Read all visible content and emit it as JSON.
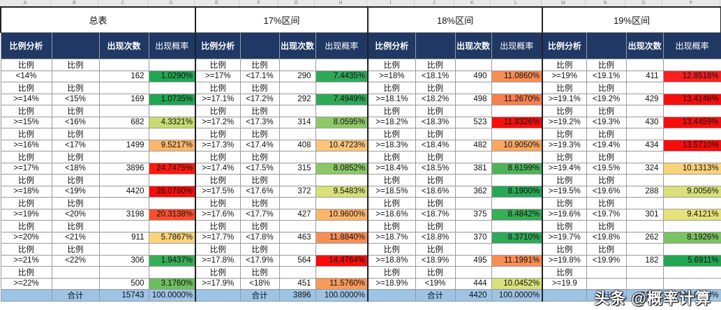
{
  "col_headers": [
    "A",
    "B",
    "C",
    "D",
    "E",
    "F",
    "G",
    "H",
    "I",
    "J",
    "K",
    "L",
    "M",
    "N",
    "O",
    "P"
  ],
  "titles": [
    "总表",
    "17%区间",
    "18%区间",
    "19%区间"
  ],
  "header_row": [
    "比例分析",
    "",
    "出现次数",
    "出现概率"
  ],
  "label_text": "比例",
  "colors": {
    "header_bg": "#1f3864",
    "total_bg": "#9dc3e6"
  },
  "sections": [
    {
      "rows": [
        {
          "lo": "<14%",
          "hi": "",
          "count": "162",
          "pct": "1.0290%",
          "color": "#22a652"
        },
        {
          "lo": ">=14%",
          "hi": "<15%",
          "count": "169",
          "pct": "1.0735%",
          "color": "#22a652"
        },
        {
          "lo": ">=15%",
          "hi": "<16%",
          "count": "682",
          "pct": "4.3321%",
          "color": "#c8dc70"
        },
        {
          "lo": ">=16%",
          "hi": "<17%",
          "count": "1499",
          "pct": "9.5217%",
          "color": "#fbb66b"
        },
        {
          "lo": ">=17%",
          "hi": "<18%",
          "count": "3896",
          "pct": "24.7475%",
          "color": "#ff1a10"
        },
        {
          "lo": ">=18%",
          "hi": "<19%",
          "count": "4420",
          "pct": "28.0760%",
          "color": "#f80d0d"
        },
        {
          "lo": ">=19%",
          "hi": "<20%",
          "count": "3198",
          "pct": "20.3138%",
          "color": "#fb4e2e"
        },
        {
          "lo": ">=20%",
          "hi": "<21%",
          "count": "911",
          "pct": "5.7867%",
          "color": "#fbd37a"
        },
        {
          "lo": ">=21%",
          "hi": "<22%",
          "count": "306",
          "pct": "1.9437%",
          "color": "#38ae56"
        },
        {
          "lo": ">=22%",
          "hi": "",
          "count": "500",
          "pct": "3.1760%",
          "color": "#6cbf5e"
        }
      ],
      "total": {
        "label": "合计",
        "count": "15743",
        "pct": "100.0000%"
      }
    },
    {
      "rows": [
        {
          "lo": ">=17%",
          "hi": "<17.1%",
          "count": "290",
          "pct": "7.4435%",
          "color": "#2fa958"
        },
        {
          "lo": ">=17.1%",
          "hi": "<17.2%",
          "count": "292",
          "pct": "7.4949%",
          "color": "#2fa958"
        },
        {
          "lo": ">=17.2%",
          "hi": "<17.3%",
          "count": "314",
          "pct": "8.0595%",
          "color": "#8fc967"
        },
        {
          "lo": ">=17.3%",
          "hi": "<17.4%",
          "count": "408",
          "pct": "10.4723%",
          "color": "#fcc67a"
        },
        {
          "lo": ">=17.4%",
          "hi": "<17.5%",
          "count": "315",
          "pct": "8.0852%",
          "color": "#8ac866"
        },
        {
          "lo": ">=17.5%",
          "hi": "<17.6%",
          "count": "372",
          "pct": "9.5483%",
          "color": "#d8e17a"
        },
        {
          "lo": ">=17.6%",
          "hi": "<17.7%",
          "count": "427",
          "pct": "10.9600%",
          "color": "#fbb66b"
        },
        {
          "lo": ">=17.7%",
          "hi": "<17.8%",
          "count": "463",
          "pct": "11.8840%",
          "color": "#f98e55"
        },
        {
          "lo": ">=17.8%",
          "hi": "<17.9%",
          "count": "564",
          "pct": "14.4764%",
          "color": "#f80d0d"
        },
        {
          "lo": ">=17.9%",
          "hi": "<18%",
          "count": "451",
          "pct": "11.5760%",
          "color": "#f99a5b"
        }
      ],
      "total": {
        "label": "合计",
        "count": "3896",
        "pct": "100.0000%"
      }
    },
    {
      "rows": [
        {
          "lo": ">=18%",
          "hi": "<18.1%",
          "count": "490",
          "pct": "11.0860%",
          "color": "#f98e55"
        },
        {
          "lo": ">=18.1%",
          "hi": "<18.2%",
          "count": "498",
          "pct": "11.2670%",
          "color": "#f97f4e"
        },
        {
          "lo": ">=18.2%",
          "hi": "<18.3%",
          "count": "523",
          "pct": "11.8326%",
          "color": "#f80d0d"
        },
        {
          "lo": ">=18.3%",
          "hi": "<18.4%",
          "count": "482",
          "pct": "10.9050%",
          "color": "#fba763"
        },
        {
          "lo": ">=18.4%",
          "hi": "<18.5%",
          "count": "381",
          "pct": "8.6199%",
          "color": "#4db45a"
        },
        {
          "lo": ">=18.5%",
          "hi": "<18.6%",
          "count": "362",
          "pct": "8.1900%",
          "color": "#27a755"
        },
        {
          "lo": ">=18.6%",
          "hi": "<18.7%",
          "count": "375",
          "pct": "8.4842%",
          "color": "#38ae56"
        },
        {
          "lo": ">=18.7%",
          "hi": "<18.8%",
          "count": "370",
          "pct": "8.3710%",
          "color": "#2fa958"
        },
        {
          "lo": ">=18.8%",
          "hi": "<18.9%",
          "count": "495",
          "pct": "11.1991%",
          "color": "#f98e55"
        },
        {
          "lo": ">=18.9%",
          "hi": "<19%",
          "count": "444",
          "pct": "10.0452%",
          "color": "#d8e17a"
        }
      ],
      "total": {
        "label": "合计",
        "count": "4420",
        "pct": "100.0000%"
      }
    },
    {
      "rows": [
        {
          "lo": ">=19%",
          "hi": "<19.1%",
          "count": "411",
          "pct": "12.8518%",
          "color": "#f92020"
        },
        {
          "lo": ">=19.1%",
          "hi": "<19.2%",
          "count": "429",
          "pct": "13.4146%",
          "color": "#f80d0d"
        },
        {
          "lo": ">=19.2%",
          "hi": "<19.3%",
          "count": "430",
          "pct": "13.4459%",
          "color": "#f80d0d"
        },
        {
          "lo": ">=19.3%",
          "hi": "<19.4%",
          "count": "434",
          "pct": "13.5710%",
          "color": "#f80d0d"
        },
        {
          "lo": ">=19.4%",
          "hi": "<19.5%",
          "count": "324",
          "pct": "10.1313%",
          "color": "#fbd37a"
        },
        {
          "lo": ">=19.5%",
          "hi": "<19.6%",
          "count": "288",
          "pct": "9.0056%",
          "color": "#d8e17a"
        },
        {
          "lo": ">=19.6%",
          "hi": "<19.7%",
          "count": "301",
          "pct": "9.4121%",
          "color": "#e6e27a"
        },
        {
          "lo": ">=19.7%",
          "hi": "<19.8%",
          "count": "262",
          "pct": "8.1926%",
          "color": "#7bc262"
        },
        {
          "lo": ">=19.8%",
          "hi": "<19.9%",
          "count": "182",
          "pct": "5.6911%",
          "color": "#22a652"
        },
        {
          "lo": ">=19.9",
          "hi": "",
          "count": "",
          "pct": "",
          "color": "#22a652"
        }
      ],
      "total": {
        "label": "合计",
        "count": "3198",
        "pct": "100.0000%"
      }
    }
  ],
  "watermark": "头条 @概率计算"
}
